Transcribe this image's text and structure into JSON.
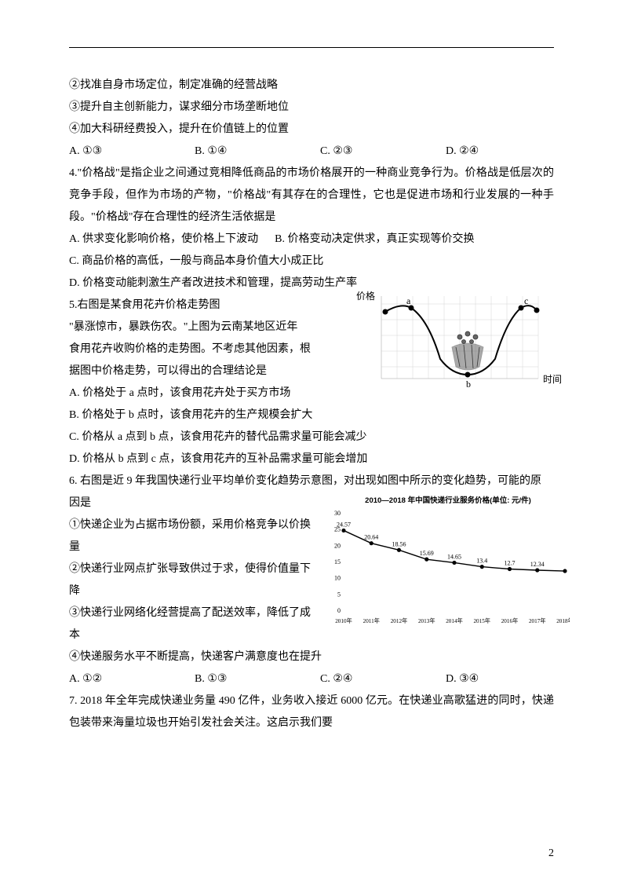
{
  "q3_prelines": [
    "②找准自身市场定位，制定准确的经营战略",
    "③提升自主创新能力，谋求细分市场垄断地位",
    "④加大科研经费投入，提升在价值链上的位置"
  ],
  "q3_opts": {
    "a": "A. ①③",
    "b": "B. ①④",
    "c": "C. ②③",
    "d": "D. ②④"
  },
  "q4_stem": "4.\"价格战\"是指企业之间通过竞相降低商品的市场价格展开的一种商业竞争行为。价格战是低层次的竞争手段，但作为市场的产物，\"价格战\"有其存在的合理性，它也是促进市场和行业发展的一种手段。\"价格战\"存在合理性的经济生活依据是",
  "q4_a": "A. 供求变化影响价格，使价格上下波动",
  "q4_b": "B. 价格变动决定供求，真正实现等价交换",
  "q4_c": "C. 商品价格的高低，一般与商品本身价值大小成正比",
  "q4_d": "D. 价格变动能刺激生产者改进技术和管理，提高劳动生产率",
  "q5_l1": "5.右图是某食用花卉价格走势图",
  "q5_l2": "\"暴涨惊市，暴跌伤农。\"上图为云南某地区近年",
  "q5_l3": "食用花卉收购价格的走势图。不考虑其他因素，根",
  "q5_l4": "据图中价格走势，可以得出的合理结论是",
  "q5_a": "A. 价格处于 a 点时，该食用花卉处于买方市场",
  "q5_b": "B. 价格处于 b 点时，该食用花卉的生产规模会扩大",
  "q5_c": "C. 价格从 a 点到 b 点，该食用花卉的替代品需求量可能会减少",
  "q5_d": "D. 价格从 b 点到 c 点，该食用花卉的互补品需求量可能会增加",
  "q5_graph": {
    "ylabel": "价格",
    "xlabel": "时间",
    "points": {
      "a": "a",
      "b": "b",
      "c": "c"
    }
  },
  "q6_l1": "6. 右图是近 9 年我国快递行业平均单价变化趋势示意图，对出现如图中所示的变化趋势，可能的原",
  "q6_l2": "因是",
  "q6_l3": "①快递企业为占据市场份额，采用价格竞争以价换",
  "q6_l4": "量",
  "q6_l5": "②快递行业网点扩张导致供过于求，使得价值量下",
  "q6_l6": "降",
  "q6_l7": "③快递行业网络化经营提高了配送效率，降低了成",
  "q6_l8": "本",
  "q6_l9": "④快递服务水平不断提高，快递客户满意度也在提升",
  "q6_opts": {
    "a": "A. ①②",
    "b": "B. ①③",
    "c": "C. ②④",
    "d": "D. ③④"
  },
  "q6_chart": {
    "title": "2010—2018 年中国快递行业服务价格(单位: 元/件)",
    "years": [
      "2010年",
      "2011年",
      "2012年",
      "2013年",
      "2014年",
      "2015年",
      "2016年",
      "2017年",
      "2018年"
    ],
    "values": [
      24.57,
      20.64,
      18.56,
      15.69,
      14.65,
      13.4,
      12.7,
      12.34,
      12.09
    ],
    "yticks": [
      0,
      5,
      10,
      15,
      20,
      25,
      30
    ],
    "line_color": "#000000",
    "marker_color": "#000000",
    "background": "#ffffff"
  },
  "q7": "7. 2018 年全年完成快递业务量 490 亿件，业务收入接近 6000 亿元。在快递业高歌猛进的同时，快递包装带来海量垃圾也开始引发社会关注。这启示我们要",
  "page_num": "2"
}
